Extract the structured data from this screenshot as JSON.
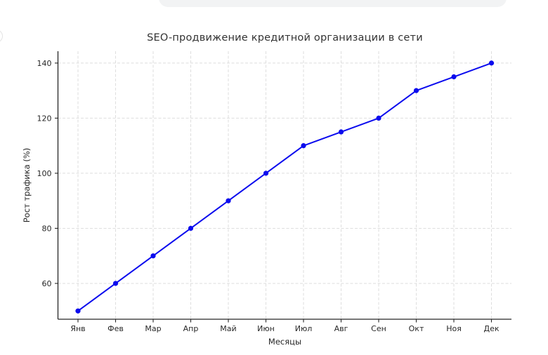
{
  "page": {
    "background_color": "#ffffff"
  },
  "overlays": {
    "input_bar_color": "#f2f3f4",
    "avatar_edge_color": "#e4e4e4"
  },
  "chart_data": {
    "type": "line",
    "title": "SEO-продвижение кредитной организации в сети",
    "xlabel": "Месяцы",
    "ylabel": "Рост трафика (%)",
    "categories": [
      "Янв",
      "Фев",
      "Мар",
      "Апр",
      "Май",
      "Июн",
      "Июл",
      "Авг",
      "Сен",
      "Окт",
      "Ноя",
      "Дек"
    ],
    "values": [
      50,
      60,
      70,
      80,
      90,
      100,
      110,
      115,
      120,
      130,
      135,
      140
    ],
    "yticks": [
      60,
      80,
      100,
      120,
      140
    ],
    "ylim": [
      47,
      144.3
    ],
    "grid": true,
    "grid_style": "dashed",
    "legend": "none",
    "line_color": "#0b0bee",
    "marker": "circle",
    "grid_color": "#dedede",
    "axis_color": "#262626",
    "text_color": "#262626",
    "title_color": "#333333"
  }
}
